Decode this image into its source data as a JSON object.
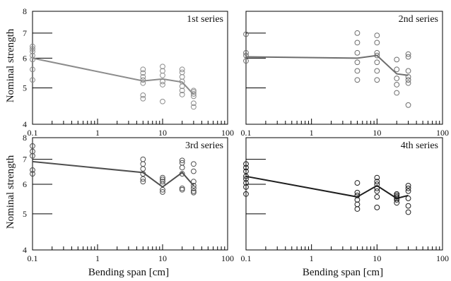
{
  "figure": {
    "ylabel": "Nominal strength",
    "xlabel": "Bending span [cm]"
  },
  "chart_data": [
    {
      "type": "scatter",
      "title": "1st series",
      "xscale": "log",
      "yscale": "log",
      "xlim": [
        0.1,
        100
      ],
      "ylim": [
        4,
        8
      ],
      "xticks": [
        0.1,
        1,
        10,
        100
      ],
      "xtick_labels": [
        "0.1",
        "1",
        "10",
        "100"
      ],
      "yticks": [
        4,
        5,
        6,
        7,
        8
      ],
      "ytick_labels": [
        "4",
        "5",
        "6",
        "7",
        "8"
      ],
      "color": "#8c8c8c",
      "mean_line": {
        "x": [
          0.1,
          5,
          10,
          20,
          30
        ],
        "y": [
          6.0,
          5.22,
          5.28,
          5.18,
          4.8
        ]
      },
      "points": {
        "0.1": [
          6.45,
          6.35,
          6.25,
          6.1,
          5.95,
          5.6,
          5.25
        ],
        "5": [
          5.6,
          5.48,
          5.35,
          5.25,
          5.15,
          4.78,
          4.68
        ],
        "10": [
          5.7,
          5.55,
          5.4,
          5.2,
          5.1,
          4.6
        ],
        "20": [
          5.6,
          5.5,
          5.35,
          5.2,
          5.05,
          4.92,
          4.8
        ],
        "30": [
          4.92,
          4.88,
          4.82,
          4.75,
          4.55,
          4.45
        ]
      }
    },
    {
      "type": "scatter",
      "title": "2nd series",
      "xscale": "log",
      "yscale": "log",
      "xlim": [
        0.1,
        100
      ],
      "ylim": [
        4,
        8
      ],
      "xticks": [
        0.1,
        1,
        10,
        100
      ],
      "xtick_labels": [
        "0.1",
        "1",
        "10",
        "100"
      ],
      "yticks": [
        4,
        5,
        6,
        7,
        8
      ],
      "ytick_labels": [
        "",
        "",
        "",
        "",
        ""
      ],
      "color": "#6e6e6e",
      "mean_line": {
        "x": [
          0.1,
          5,
          10,
          20,
          30
        ],
        "y": [
          6.05,
          6.0,
          6.1,
          5.45,
          5.4
        ]
      },
      "points": {
        "0.1": [
          6.95,
          6.2,
          6.1,
          5.9
        ],
        "5": [
          7.0,
          6.6,
          6.2,
          5.85,
          5.55,
          5.25
        ],
        "10": [
          6.9,
          6.6,
          6.2,
          6.1,
          5.85,
          5.55,
          5.25
        ],
        "20": [
          5.95,
          5.6,
          5.3,
          5.1,
          4.85
        ],
        "30": [
          6.15,
          6.05,
          5.55,
          5.35,
          5.25,
          5.15,
          4.5
        ]
      }
    },
    {
      "type": "scatter",
      "title": "3rd series",
      "xscale": "log",
      "yscale": "log",
      "xlim": [
        0.1,
        100
      ],
      "ylim": [
        4,
        8
      ],
      "xticks": [
        0.1,
        1,
        10,
        100
      ],
      "xtick_labels": [
        "0.1",
        "1",
        "10",
        "100"
      ],
      "yticks": [
        4,
        5,
        6,
        7,
        8
      ],
      "ytick_labels": [
        "4",
        "5",
        "6",
        "7",
        "8"
      ],
      "color": "#4f4f4f",
      "mean_line": {
        "x": [
          0.1,
          5,
          10,
          20,
          30
        ],
        "y": [
          6.9,
          6.45,
          5.9,
          6.45,
          5.95
        ]
      },
      "points": {
        "0.1": [
          7.6,
          7.35,
          7.15,
          6.55,
          6.4
        ],
        "5": [
          7.0,
          6.8,
          6.6,
          6.4,
          6.2,
          6.1
        ],
        "10": [
          6.25,
          6.18,
          6.1,
          6.0,
          5.8,
          5.72
        ],
        "20": [
          6.95,
          6.85,
          6.65,
          6.4,
          5.85,
          5.8
        ],
        "30": [
          6.8,
          6.5,
          6.1,
          5.95,
          5.85,
          5.75,
          5.7
        ]
      }
    },
    {
      "type": "scatter",
      "title": "4th series",
      "xscale": "log",
      "yscale": "log",
      "xlim": [
        0.1,
        100
      ],
      "ylim": [
        4,
        8
      ],
      "xticks": [
        0.1,
        1,
        10,
        100
      ],
      "xtick_labels": [
        "0.1",
        "1",
        "10",
        "100"
      ],
      "yticks": [
        4,
        5,
        6,
        7,
        8
      ],
      "ytick_labels": [
        "",
        "",
        "",
        "",
        ""
      ],
      "color": "#1e1e1e",
      "mean_line": {
        "x": [
          0.1,
          5,
          10,
          20,
          30
        ],
        "y": [
          6.3,
          5.55,
          5.95,
          5.5,
          5.6
        ]
      },
      "points": {
        "0.1": [
          6.8,
          6.65,
          6.5,
          6.3,
          6.2,
          6.05,
          5.9,
          5.65
        ],
        "5": [
          6.05,
          5.7,
          5.6,
          5.45,
          5.3,
          5.15
        ],
        "10": [
          6.25,
          6.1,
          6.0,
          5.85,
          5.75,
          5.55,
          5.2
        ],
        "20": [
          5.65,
          5.6,
          5.55,
          5.5,
          5.45,
          5.35
        ],
        "30": [
          5.95,
          5.85,
          5.75,
          5.5,
          5.25,
          5.05
        ]
      }
    }
  ]
}
